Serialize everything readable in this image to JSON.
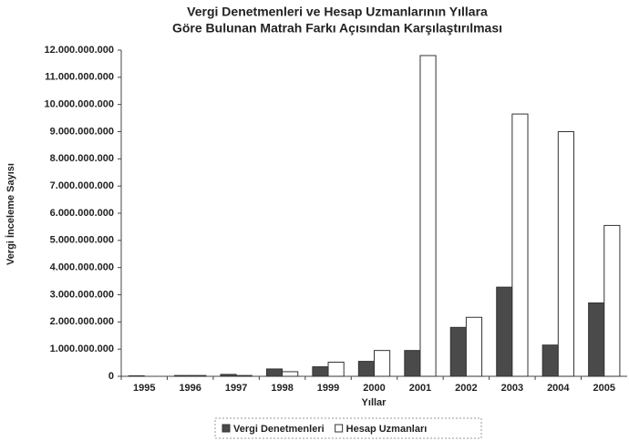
{
  "chart_data": {
    "type": "bar",
    "title": [
      "Vergi Denetmenleri ve Hesap Uzmanlarının Yıllara",
      "Göre Bulunan Matrah Farkı Açısından Karşılaştırılması"
    ],
    "x_label": "Yıllar",
    "y_label": "Vergi İnceleme Sayısı",
    "categories": [
      "1995",
      "1996",
      "1997",
      "1998",
      "1999",
      "2000",
      "2001",
      "2002",
      "2003",
      "2004",
      "2005"
    ],
    "series": [
      {
        "name": "Vergi Denetmenleri",
        "color": "#4a4a4a",
        "values": [
          20000000,
          30000000,
          70000000,
          270000000,
          350000000,
          550000000,
          950000000,
          1800000000,
          3280000000,
          1150000000,
          2700000000
        ]
      },
      {
        "name": "Hesap Uzmanları",
        "color": "#ffffff",
        "values": [
          0,
          30000000,
          30000000,
          170000000,
          520000000,
          950000000,
          11800000000,
          2170000000,
          9650000000,
          9000000000,
          5550000000
        ]
      }
    ],
    "ylim": [
      0,
      12000000000
    ],
    "yticks": [
      {
        "value": 0,
        "label": "0"
      },
      {
        "value": 1000000000,
        "label": "1.000.000.000"
      },
      {
        "value": 2000000000,
        "label": "2.000.000.000"
      },
      {
        "value": 3000000000,
        "label": "3.000.000.000"
      },
      {
        "value": 4000000000,
        "label": "4.000.000.000"
      },
      {
        "value": 5000000000,
        "label": "5.000.000.000"
      },
      {
        "value": 6000000000,
        "label": "6.000.000.000"
      },
      {
        "value": 7000000000,
        "label": "7.000.000.000"
      },
      {
        "value": 8000000000,
        "label": "8.000.000.000"
      },
      {
        "value": 9000000000,
        "label": "9.000.000.000"
      },
      {
        "value": 10000000000,
        "label": "10.000.000.000"
      },
      {
        "value": 11000000000,
        "label": "11.000.000.000"
      },
      {
        "value": 12000000000,
        "label": "12.000.000.000"
      }
    ],
    "grid": false,
    "legend": "bottom"
  }
}
